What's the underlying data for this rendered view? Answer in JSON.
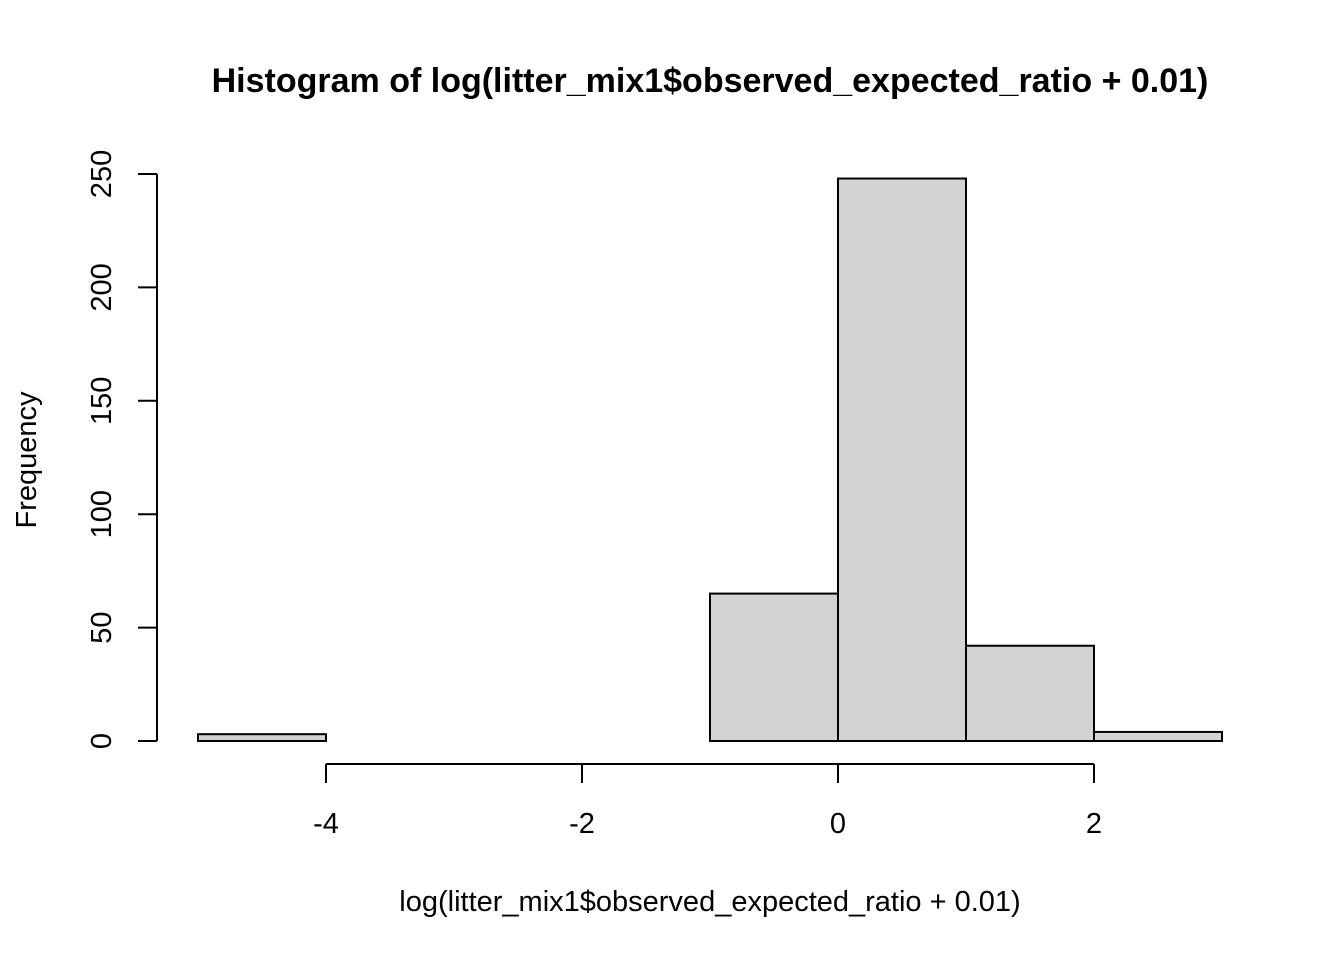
{
  "chart_data": {
    "type": "bar",
    "title": "Histogram of log(litter_mix1$observed_expected_ratio + 0.01)",
    "xlabel": "log(litter_mix1$observed_expected_ratio + 0.01)",
    "ylabel": "Frequency",
    "bins": [
      {
        "start": -5,
        "end": -4,
        "count": 3
      },
      {
        "start": -4,
        "end": -3,
        "count": 0
      },
      {
        "start": -3,
        "end": -2,
        "count": 0
      },
      {
        "start": -2,
        "end": -1,
        "count": 0
      },
      {
        "start": -1,
        "end": 0,
        "count": 65
      },
      {
        "start": 0,
        "end": 1,
        "count": 248
      },
      {
        "start": 1,
        "end": 2,
        "count": 42
      },
      {
        "start": 2,
        "end": 3,
        "count": 4
      }
    ],
    "xlim": [
      -5,
      3
    ],
    "ylim": [
      0,
      250
    ],
    "x_ticks": [
      -4,
      -2,
      0,
      2
    ],
    "y_ticks": [
      0,
      50,
      100,
      150,
      200,
      250
    ],
    "bar_color": "#d3d3d3",
    "grid": false
  }
}
